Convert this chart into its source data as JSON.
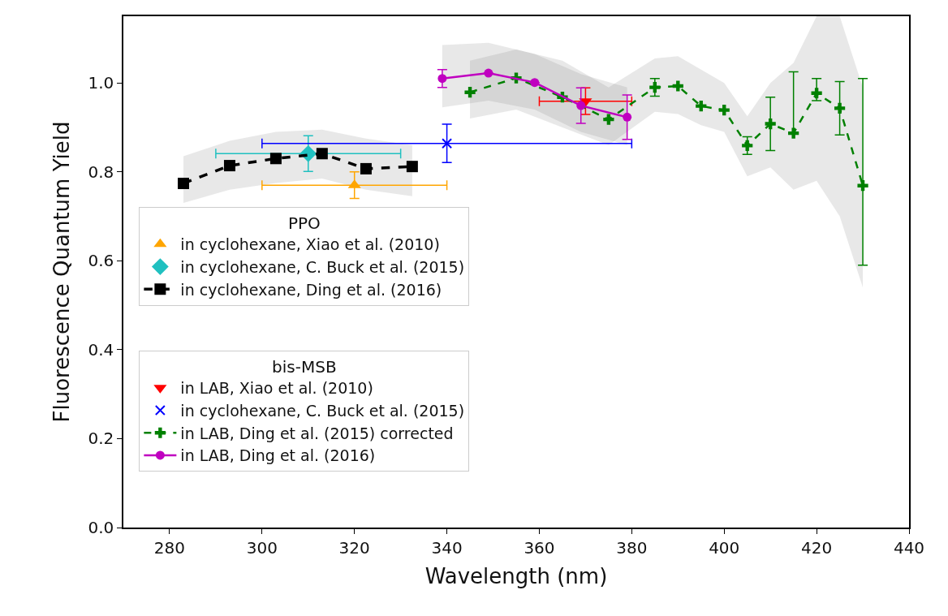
{
  "chart_data": {
    "type": "scatter",
    "xlabel": "Wavelength (nm)",
    "ylabel": "Fluorescence Quantum Yield",
    "xlim": [
      270,
      440
    ],
    "xticks": [
      280,
      300,
      320,
      340,
      360,
      380,
      400,
      420,
      440
    ],
    "ylim": [
      0,
      1.15
    ],
    "yticks": [
      {
        "value": 0,
        "label": "0.0"
      },
      0.2,
      0.4,
      0.6,
      0.8,
      {
        "value": 1,
        "label": "1.0"
      }
    ],
    "legend": "bottom left",
    "legend_title": [
      "PPO",
      "bis-MSB"
    ],
    "series": [
      {
        "name": "in cyclohexane, Xiao et al. (2010)",
        "color": "#ffa500",
        "marker": "triangle",
        "line_style": "none",
        "x": [
          320
        ],
        "values": [
          0.77
        ],
        "errors": [
          0.03
        ],
        "xerrors": [
          20
        ]
      },
      {
        "name": "in cyclohexane, C. Buck et al. (2015)",
        "color": "#20c0c0",
        "marker": "diamond",
        "line_style": "none",
        "x": [
          310
        ],
        "values": [
          0.841
        ],
        "errors": [
          0.04
        ],
        "xerrors": [
          20
        ]
      },
      {
        "name": "in cyclohexane, Ding et al. (2016)",
        "color": "#000000",
        "marker": "square",
        "line_style": "dashed",
        "type": "line",
        "x": [
          283,
          293,
          303,
          313,
          322.5,
          332.5
        ],
        "values": [
          0.774,
          0.814,
          0.83,
          0.841,
          0.807,
          0.812
        ],
        "lower": [
          0.73,
          0.76,
          0.775,
          0.785,
          0.76,
          0.745
        ],
        "upper": [
          0.835,
          0.87,
          0.89,
          0.895,
          0.875,
          0.86
        ]
      },
      {
        "name": "in LAB, Xiao et al. (2010)",
        "color": "#ff0000",
        "marker": "triangle-down",
        "line_style": "none",
        "x": [
          370
        ],
        "values": [
          0.959
        ],
        "errors": [
          0.03
        ],
        "xerrors": [
          10
        ]
      },
      {
        "name": "in cyclohexane, C. Buck et al. (2015)",
        "color": "#0000ff",
        "marker": "x",
        "line_style": "none",
        "x": [
          340
        ],
        "values": [
          0.864
        ],
        "errors": [
          0.043
        ],
        "xerrors": [
          40
        ]
      },
      {
        "name": "in LAB, Ding et al. (2015) corrected",
        "color": "#008000",
        "marker": "cross",
        "line_style": "dashed",
        "type": "line",
        "x": [
          345,
          355,
          365,
          375,
          385,
          390,
          395,
          400,
          405,
          410,
          415,
          420,
          425,
          430
        ],
        "values": [
          0.979,
          1.011,
          0.968,
          0.918,
          0.99,
          0.993,
          0.948,
          0.939,
          0.859,
          0.908,
          0.887,
          0.977,
          0.943,
          0.769
        ],
        "errors": [
          null,
          null,
          null,
          null,
          0.02,
          null,
          null,
          null,
          0.02,
          0.06,
          [
            0.885,
            1.025
          ],
          [
            0.96,
            1.01
          ],
          0.06,
          [
            0.59,
            1.01
          ]
        ],
        "lower": [
          0.92,
          0.94,
          0.9,
          0.86,
          0.935,
          0.93,
          0.905,
          0.89,
          0.79,
          0.81,
          0.76,
          0.78,
          0.7,
          0.54
        ],
        "upper": [
          1.05,
          1.075,
          1.05,
          0.99,
          1.055,
          1.06,
          1.03,
          1.0,
          0.925,
          1.0,
          1.045,
          1.15,
          1.15,
          0.99
        ]
      },
      {
        "name": "in LAB, Ding et al. (2016)",
        "color": "#c000c0",
        "marker": "circle",
        "line_style": "solid",
        "type": "line",
        "x": [
          339,
          349,
          359,
          369,
          379
        ],
        "values": [
          1.01,
          1.022,
          1.001,
          0.949,
          0.923
        ],
        "errors": [
          0.02,
          null,
          null,
          0.04,
          0.05
        ],
        "lower": [
          0.945,
          0.96,
          0.94,
          0.89,
          0.86
        ],
        "upper": [
          1.085,
          1.09,
          1.065,
          1.02,
          0.99
        ]
      }
    ]
  }
}
